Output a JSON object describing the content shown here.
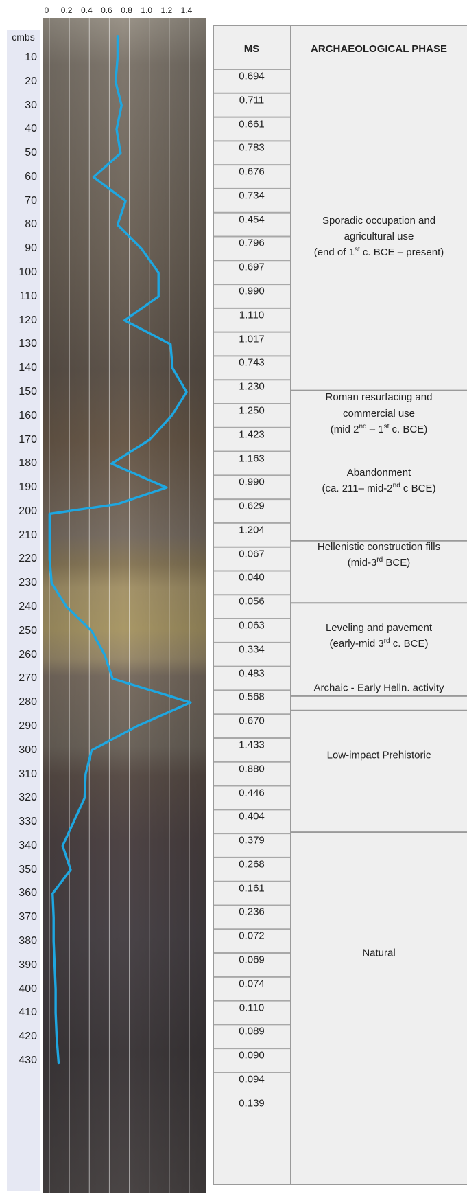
{
  "chart_data": {
    "type": "line",
    "title": "",
    "xlabel": "",
    "ylabel": "cmbs",
    "xlim": [
      0,
      1.4
    ],
    "ylim": [
      430,
      0
    ],
    "x_ticks": [
      "0",
      "0.2",
      "0.4",
      "0.6",
      "0.8",
      "1.0",
      "1.2",
      "1.4"
    ],
    "y_ticks": [
      10,
      20,
      30,
      40,
      50,
      60,
      70,
      80,
      90,
      100,
      110,
      120,
      130,
      140,
      150,
      160,
      170,
      180,
      190,
      200,
      210,
      220,
      230,
      240,
      250,
      260,
      270,
      280,
      290,
      300,
      310,
      320,
      330,
      340,
      350,
      360,
      370,
      380,
      390,
      400,
      410,
      420,
      430
    ],
    "series": [
      {
        "color": "#1ea7e1",
        "points": [
          [
            0.71,
            1
          ],
          [
            0.71,
            10
          ],
          [
            0.69,
            20
          ],
          [
            0.75,
            30
          ],
          [
            0.7,
            40
          ],
          [
            0.74,
            50
          ],
          [
            0.47,
            60
          ],
          [
            0.79,
            70
          ],
          [
            0.71,
            80
          ],
          [
            0.95,
            90
          ],
          [
            1.12,
            100
          ],
          [
            1.12,
            110
          ],
          [
            0.78,
            120
          ],
          [
            1.24,
            130
          ],
          [
            1.26,
            140
          ],
          [
            1.4,
            150
          ],
          [
            1.25,
            160
          ],
          [
            1.03,
            170
          ],
          [
            0.65,
            180
          ],
          [
            1.2,
            190
          ],
          [
            0.7,
            197
          ],
          [
            0.03,
            201
          ],
          [
            0.03,
            210
          ],
          [
            0.03,
            220
          ],
          [
            0.05,
            230
          ],
          [
            0.2,
            240
          ],
          [
            0.45,
            250
          ],
          [
            0.58,
            260
          ],
          [
            0.66,
            270
          ],
          [
            1.44,
            280
          ],
          [
            0.9,
            290
          ],
          [
            0.45,
            300
          ],
          [
            0.39,
            310
          ],
          [
            0.38,
            320
          ],
          [
            0.27,
            330
          ],
          [
            0.16,
            340
          ],
          [
            0.24,
            350
          ],
          [
            0.06,
            360
          ],
          [
            0.07,
            370
          ],
          [
            0.07,
            380
          ],
          [
            0.08,
            390
          ],
          [
            0.09,
            400
          ],
          [
            0.09,
            410
          ],
          [
            0.1,
            420
          ],
          [
            0.12,
            431
          ]
        ]
      }
    ]
  },
  "table": {
    "header_ms": "MS",
    "header_phase": "ARCHAEOLOGICAL PHASE",
    "ms_values": [
      {
        "depth": 10,
        "value": "0.694"
      },
      {
        "depth": 20,
        "value": "0.711"
      },
      {
        "depth": 30,
        "value": "0.661"
      },
      {
        "depth": 40,
        "value": "0.783"
      },
      {
        "depth": 50,
        "value": "0.676"
      },
      {
        "depth": 60,
        "value": "0.734"
      },
      {
        "depth": 70,
        "value": "0.454"
      },
      {
        "depth": 80,
        "value": "0.796"
      },
      {
        "depth": 90,
        "value": "0.697"
      },
      {
        "depth": 100,
        "value": "0.990"
      },
      {
        "depth": 110,
        "value": "1.110"
      },
      {
        "depth": 120,
        "value": "1.017"
      },
      {
        "depth": 130,
        "value": "0.743"
      },
      {
        "depth": 140,
        "value": "1.230"
      },
      {
        "depth": 150,
        "value": "1.250"
      },
      {
        "depth": 160,
        "value": "1.423"
      },
      {
        "depth": 170,
        "value": "1.163"
      },
      {
        "depth": 180,
        "value": "0.990"
      },
      {
        "depth": 190,
        "value": "0.629"
      },
      {
        "depth": 200,
        "value": "1.204"
      },
      {
        "depth": 210,
        "value": "0.067"
      },
      {
        "depth": 220,
        "value": "0.040"
      },
      {
        "depth": 230,
        "value": "0.056"
      },
      {
        "depth": 240,
        "value": "0.063"
      },
      {
        "depth": 250,
        "value": "0.334"
      },
      {
        "depth": 260,
        "value": "0.483"
      },
      {
        "depth": 270,
        "value": "0.568"
      },
      {
        "depth": 280,
        "value": "0.670"
      },
      {
        "depth": 290,
        "value": "1.433"
      },
      {
        "depth": 300,
        "value": "0.880"
      },
      {
        "depth": 310,
        "value": "0.446"
      },
      {
        "depth": 320,
        "value": "0.404"
      },
      {
        "depth": 330,
        "value": "0.379"
      },
      {
        "depth": 340,
        "value": "0.268"
      },
      {
        "depth": 350,
        "value": "0.161"
      },
      {
        "depth": 360,
        "value": "0.236"
      },
      {
        "depth": 370,
        "value": "0.072"
      },
      {
        "depth": 380,
        "value": "0.069"
      },
      {
        "depth": 390,
        "value": "0.074"
      },
      {
        "depth": 400,
        "value": "0.110"
      },
      {
        "depth": 410,
        "value": "0.089"
      },
      {
        "depth": 420,
        "value": "0.090"
      },
      {
        "depth": 430,
        "value": "0.094"
      },
      {
        "depth": 440,
        "value": "0.139"
      }
    ],
    "phases": [
      {
        "from": 0,
        "to": 143,
        "lines": [
          "Sporadic occupation and",
          "agricultural use",
          "(end of 1st c. BCE – present)"
        ]
      },
      {
        "from": 143,
        "to": 206,
        "lines": [
          "Roman resurfacing and",
          "commercial use",
          "(mid 2nd – 1st c. BCE)"
        ]
      },
      {
        "from": 143,
        "to": 206,
        "lines": [
          "Abandonment",
          "(ca. 211– mid-2nd c BCE)"
        ]
      },
      {
        "from": 206,
        "to": 232,
        "lines": [
          "Hellenistic construction fills",
          "(mid-3rd BCE)"
        ]
      },
      {
        "from": 232,
        "to": 271,
        "lines": [
          "Leveling and pavement",
          "(early-mid 3rd  c. BCE)"
        ]
      },
      {
        "from": 271,
        "to": 277,
        "lines": [
          "Archaic - Early Helln. activity"
        ]
      },
      {
        "from": 277,
        "to": 328,
        "lines": [
          "Low-impact Prehistoric"
        ]
      },
      {
        "from": 328,
        "to": 445,
        "lines": [
          "Natural"
        ]
      }
    ]
  }
}
